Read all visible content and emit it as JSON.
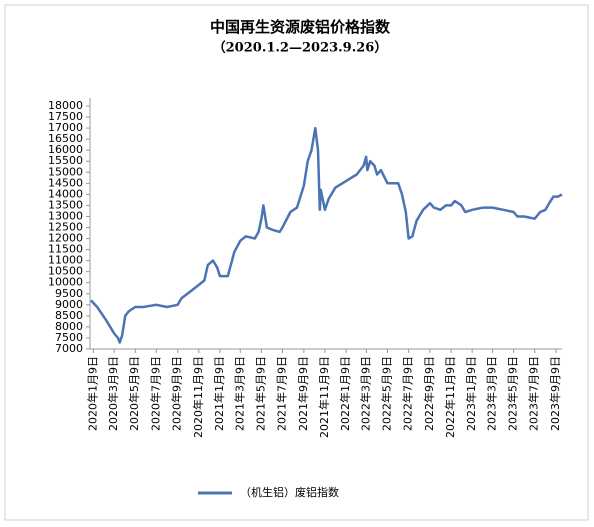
{
  "chart_data": {
    "type": "line",
    "title": "中国再生资源废铝价格指数",
    "subtitle": "（2020.1.2—2023.9.26）",
    "ylim": [
      7000,
      18000
    ],
    "yticks": [
      7000,
      7500,
      8000,
      8500,
      9000,
      9500,
      10000,
      10500,
      11000,
      11500,
      12000,
      12500,
      13000,
      13500,
      14000,
      14500,
      15000,
      15500,
      16000,
      16500,
      17000,
      17500,
      18000
    ],
    "xlim": [
      "2020-01-02",
      "2023-09-26"
    ],
    "xticks": [
      {
        "value": "2020-01-09",
        "label": "2020年1月9日"
      },
      {
        "value": "2020-03-09",
        "label": "2020年3月9日"
      },
      {
        "value": "2020-05-09",
        "label": "2020年5月9日"
      },
      {
        "value": "2020-07-09",
        "label": "2020年7月9日"
      },
      {
        "value": "2020-09-09",
        "label": "2020年9月9日"
      },
      {
        "value": "2020-11-09",
        "label": "2020年11月9日"
      },
      {
        "value": "2021-01-09",
        "label": "2021年1月9日"
      },
      {
        "value": "2021-03-09",
        "label": "2021年3月9日"
      },
      {
        "value": "2021-05-09",
        "label": "2021年5月9日"
      },
      {
        "value": "2021-07-09",
        "label": "2021年7月9日"
      },
      {
        "value": "2021-09-09",
        "label": "2021年9月9日"
      },
      {
        "value": "2021-11-09",
        "label": "2021年11月9日"
      },
      {
        "value": "2022-01-09",
        "label": "2022年1月9日"
      },
      {
        "value": "2022-03-09",
        "label": "2022年3月9日"
      },
      {
        "value": "2022-05-09",
        "label": "2022年5月9日"
      },
      {
        "value": "2022-07-09",
        "label": "2022年7月9日"
      },
      {
        "value": "2022-09-09",
        "label": "2022年9月9日"
      },
      {
        "value": "2022-11-09",
        "label": "2022年11月9日"
      },
      {
        "value": "2023-01-09",
        "label": "2023年1月9日"
      },
      {
        "value": "2023-03-09",
        "label": "2023年3月9日"
      },
      {
        "value": "2023-05-09",
        "label": "2023年5月9日"
      },
      {
        "value": "2023-07-09",
        "label": "2023年7月9日"
      },
      {
        "value": "2023-09-09",
        "label": "2023年9月9日"
      }
    ],
    "x": [
      "2020-01-02",
      "2020-01-20",
      "2020-02-15",
      "2020-03-09",
      "2020-03-20",
      "2020-03-25",
      "2020-04-01",
      "2020-04-10",
      "2020-04-20",
      "2020-05-09",
      "2020-06-01",
      "2020-07-09",
      "2020-08-09",
      "2020-09-09",
      "2020-09-20",
      "2020-10-15",
      "2020-11-09",
      "2020-11-25",
      "2020-12-05",
      "2020-12-20",
      "2021-01-01",
      "2021-01-09",
      "2021-02-01",
      "2021-02-20",
      "2021-03-09",
      "2021-03-25",
      "2021-04-20",
      "2021-05-01",
      "2021-05-09",
      "2021-05-15",
      "2021-05-25",
      "2021-06-09",
      "2021-07-01",
      "2021-07-09",
      "2021-08-01",
      "2021-08-20",
      "2021-09-09",
      "2021-09-20",
      "2021-10-01",
      "2021-10-12",
      "2021-10-20",
      "2021-10-25",
      "2021-10-28",
      "2021-11-09",
      "2021-11-20",
      "2021-12-09",
      "2022-01-09",
      "2022-02-09",
      "2022-03-01",
      "2022-03-08",
      "2022-03-12",
      "2022-03-20",
      "2022-04-01",
      "2022-04-09",
      "2022-04-20",
      "2022-05-09",
      "2022-06-09",
      "2022-06-20",
      "2022-07-01",
      "2022-07-09",
      "2022-07-20",
      "2022-08-01",
      "2022-08-20",
      "2022-09-09",
      "2022-09-20",
      "2022-10-09",
      "2022-10-25",
      "2022-11-09",
      "2022-11-20",
      "2022-12-09",
      "2022-12-20",
      "2023-01-09",
      "2023-02-09",
      "2023-03-09",
      "2023-04-09",
      "2023-05-09",
      "2023-05-20",
      "2023-06-09",
      "2023-07-09",
      "2023-07-25",
      "2023-08-09",
      "2023-08-20",
      "2023-09-01",
      "2023-09-15",
      "2023-09-26"
    ],
    "series": [
      {
        "name": "（机生铝）废铝指数",
        "color": "#4a74b4",
        "values": [
          9200,
          8900,
          8300,
          7700,
          7500,
          7300,
          7600,
          8500,
          8700,
          8900,
          8900,
          9000,
          8900,
          9000,
          9300,
          9600,
          9900,
          10100,
          10800,
          11000,
          10700,
          10300,
          10300,
          11400,
          11900,
          12100,
          12000,
          12300,
          12900,
          13500,
          12500,
          12400,
          12300,
          12500,
          13200,
          13400,
          14400,
          15500,
          16000,
          17000,
          16000,
          13300,
          14200,
          13300,
          13800,
          14300,
          14600,
          14900,
          15300,
          15700,
          15100,
          15500,
          15300,
          14900,
          15100,
          14500,
          14500,
          14000,
          13200,
          12000,
          12100,
          12800,
          13300,
          13600,
          13400,
          13300,
          13500,
          13500,
          13700,
          13500,
          13200,
          13300,
          13400,
          13400,
          13300,
          13200,
          13000,
          13000,
          12900,
          13200,
          13300,
          13600,
          13900,
          13900,
          14000
        ]
      }
    ]
  }
}
